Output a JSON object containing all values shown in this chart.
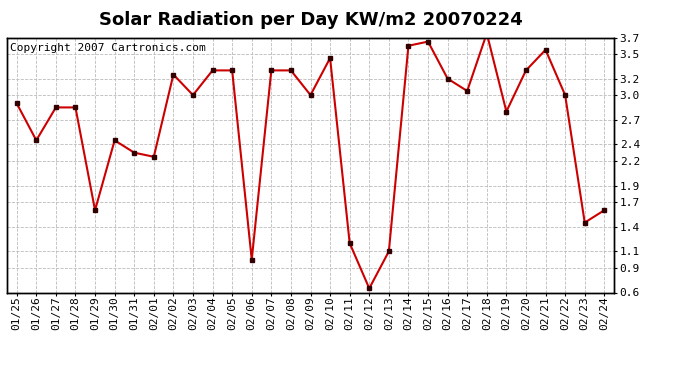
{
  "title": "Solar Radiation per Day KW/m2 20070224",
  "copyright": "Copyright 2007 Cartronics.com",
  "dates": [
    "01/25",
    "01/26",
    "01/27",
    "01/28",
    "01/29",
    "01/30",
    "01/31",
    "02/01",
    "02/02",
    "02/03",
    "02/04",
    "02/05",
    "02/06",
    "02/07",
    "02/08",
    "02/09",
    "02/10",
    "02/11",
    "02/12",
    "02/13",
    "02/14",
    "02/15",
    "02/16",
    "02/17",
    "02/18",
    "02/19",
    "02/20",
    "02/21",
    "02/22",
    "02/23",
    "02/24"
  ],
  "values": [
    2.9,
    2.45,
    2.85,
    2.85,
    1.6,
    2.45,
    2.3,
    2.25,
    3.25,
    3.0,
    3.3,
    3.3,
    1.0,
    3.3,
    3.3,
    3.0,
    3.45,
    1.2,
    0.65,
    1.1,
    3.6,
    3.65,
    3.2,
    3.05,
    3.75,
    2.8,
    3.3,
    3.55,
    3.0,
    1.45,
    1.6
  ],
  "line_color": "#cc0000",
  "marker_color": "#330000",
  "bg_color": "#ffffff",
  "plot_bg_color": "#ffffff",
  "grid_color": "#bbbbbb",
  "ylim": [
    0.6,
    3.7
  ],
  "yticks": [
    0.6,
    0.9,
    1.1,
    1.4,
    1.7,
    1.9,
    2.2,
    2.4,
    2.7,
    3.0,
    3.2,
    3.5,
    3.7
  ],
  "ytick_labels": [
    "0.6",
    "0.9",
    "1.1",
    "1.4",
    "1.7",
    "1.9",
    "2.2",
    "2.4",
    "2.7",
    "3.0",
    "3.2",
    "3.5",
    "3.7"
  ],
  "title_fontsize": 13,
  "tick_fontsize": 8,
  "copyright_fontsize": 8
}
